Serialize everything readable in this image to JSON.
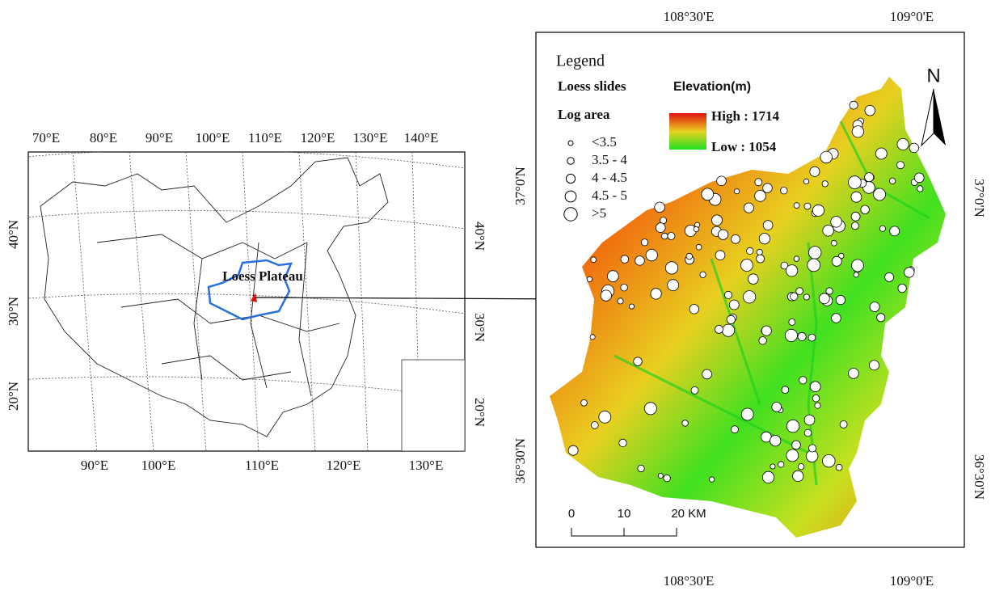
{
  "left_map": {
    "top_lon_labels": [
      "70°E",
      "80°E",
      "90°E",
      "100°E",
      "110°E",
      "120°E",
      "130°E",
      "140°E"
    ],
    "bottom_lon_labels": [
      "90°E",
      "100°E",
      "110°E",
      "120°E",
      "130°E"
    ],
    "left_lat_labels": [
      "40°N",
      "30°N",
      "20°N"
    ],
    "right_lat_labels": [
      "40°N",
      "30°N",
      "20°N"
    ],
    "region_label": "Loess Plateau"
  },
  "right_map": {
    "top_lon_labels": [
      "108°30'E",
      "109°0'E"
    ],
    "bottom_lon_labels": [
      "108°30'E",
      "109°0'E"
    ],
    "left_lat_labels": [
      "37°0'N",
      "36°30'N"
    ],
    "right_lat_labels": [
      "37°0'N",
      "36°30'N"
    ],
    "north_label": "N",
    "scale_labels": [
      "0",
      "10",
      "20 KM"
    ]
  },
  "legend": {
    "title": "Legend",
    "slides_title": "Loess slides",
    "size_title": "Log area",
    "size_classes": [
      "<3.5",
      "3.5 - 4",
      "4 - 4.5",
      "4.5 - 5",
      ">5"
    ],
    "elevation_title": "Elevation(m)",
    "high_label": "High : 1714",
    "low_label": "Low : 1054"
  }
}
